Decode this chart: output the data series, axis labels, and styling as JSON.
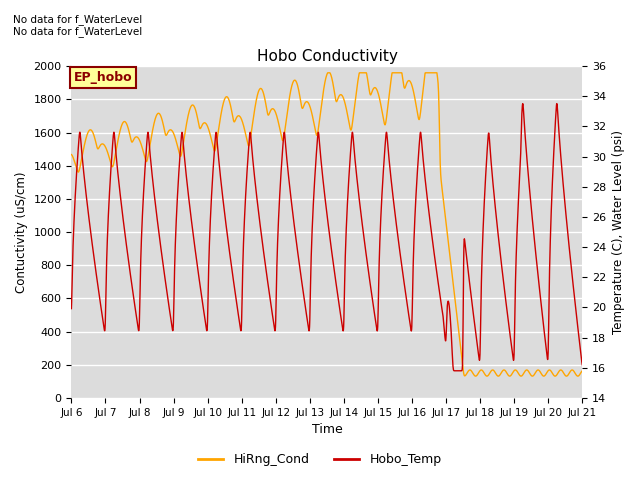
{
  "title": "Hobo Conductivity",
  "xlabel": "Time",
  "ylabel_left": "Contuctivity (uS/cm)",
  "ylabel_right": "Temperature (C), Water Level (psi)",
  "annotation_line1": "No data for f_WaterLevel",
  "annotation_line2": "No data for f_WaterLevel",
  "ep_hobo_label": "EP_hobo",
  "ep_hobo_color": "#8B0000",
  "ep_hobo_bg": "#FFFF99",
  "ylim_left": [
    0,
    2000
  ],
  "ylim_right": [
    14,
    36
  ],
  "bg_color": "#DCDCDC",
  "grid_color": "#FFFFFF",
  "line_cond_color": "#FFA500",
  "line_temp_color": "#CC0000",
  "legend_cond": "HiRng_Cond",
  "legend_temp": "Hobo_Temp",
  "xtick_labels": [
    "Jul 6",
    "Jul 7",
    "Jul 8",
    "Jul 9",
    "Jul 10",
    "Jul 11",
    "Jul 12",
    "Jul 13",
    "Jul 14",
    "Jul 15",
    "Jul 16",
    "Jul 17",
    "Jul 18",
    "Jul 19",
    "Jul 20",
    "Jul 21"
  ],
  "ytick_left": [
    0,
    200,
    400,
    600,
    800,
    1000,
    1200,
    1400,
    1600,
    1800,
    2000
  ],
  "ytick_right": [
    14,
    16,
    18,
    20,
    22,
    24,
    26,
    28,
    30,
    32,
    34,
    36
  ]
}
